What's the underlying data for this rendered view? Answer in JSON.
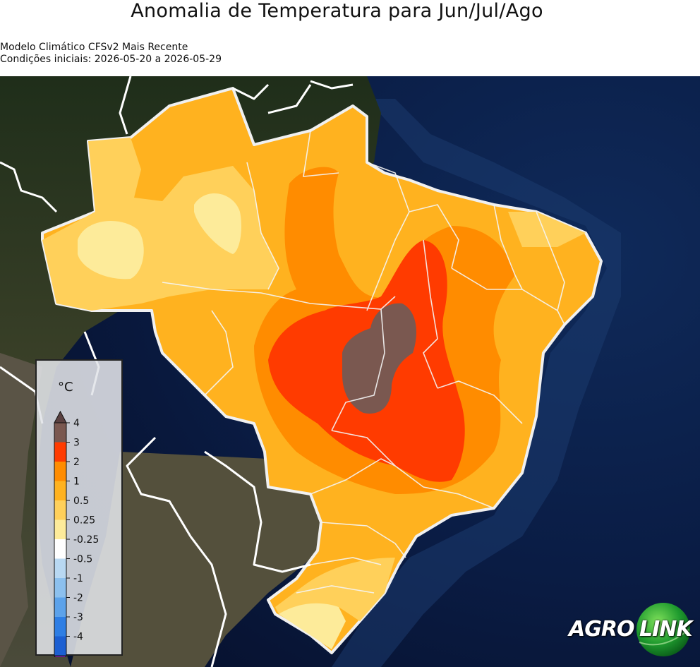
{
  "title": "Anomalia de Temperatura para Jun/Jul/Ago",
  "subtitle_model": "Modelo Climático CFSv2 Mais Recente",
  "subtitle_conditions": "Condições iniciais: 2026-05-20 a 2026-05-29",
  "legend": {
    "unit": "°C",
    "ticks": [
      "4",
      "3",
      "2",
      "1",
      "0.5",
      "0.25",
      "-0.25",
      "-0.5",
      "-1",
      "-2",
      "-3",
      "-4"
    ],
    "colors": [
      "#7a5850",
      "#ff3b00",
      "#ff8c00",
      "#ffb21f",
      "#ffd05a",
      "#fdeb9a",
      "#ffffff",
      "#b8d8f2",
      "#8cc0ee",
      "#5ca2ea",
      "#2e7ee4",
      "#1c5fd2"
    ],
    "top_extend_color": "#5a4040",
    "bottom_extend_color": "#7a1fa0"
  },
  "logo": {
    "part1": "AGRO",
    "part2": "LINK"
  },
  "colors": {
    "ocean": "#0a1a3a",
    "land_dark": "#2c3a22",
    "anomaly_05": "#ffd05a",
    "anomaly_025": "#fdeb9a",
    "anomaly_1": "#ffb21f",
    "anomaly_2": "#ff8c00",
    "anomaly_3": "#ff3b00",
    "anomaly_4": "#7a5850"
  }
}
